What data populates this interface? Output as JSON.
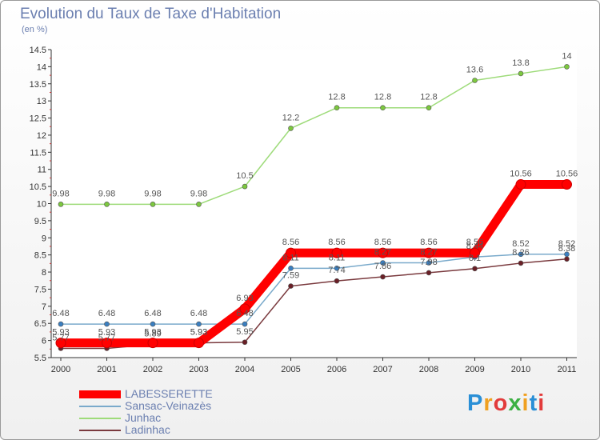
{
  "title": "Evolution du Taux de Taxe d'Habitation",
  "unit": "(en %)",
  "logo": "Proxiti",
  "chart_data": {
    "type": "line",
    "title": "Evolution du Taux de Taxe d'Habitation",
    "ylabel": "(en %)",
    "x": [
      "2000",
      "2001",
      "2002",
      "2003",
      "2004",
      "2005",
      "2006",
      "2007",
      "2008",
      "2009",
      "2010",
      "2011"
    ],
    "ylim": [
      5.5,
      14.5
    ],
    "yticks": [
      "5.5",
      "6",
      "6.5",
      "7",
      "7.5",
      "8",
      "8.5",
      "9",
      "9.5",
      "10",
      "10.5",
      "11",
      "11.5",
      "12",
      "12.5",
      "13",
      "13.5",
      "14",
      "14.5"
    ],
    "grid": false,
    "legend_position": "bottom-left",
    "series": [
      {
        "name": "LABESSERETTE",
        "color": "#ff0000",
        "values": [
          5.93,
          5.93,
          5.93,
          5.93,
          6.93,
          8.56,
          8.56,
          8.56,
          8.56,
          8.56,
          10.56,
          10.56
        ],
        "labels": [
          "5.93",
          "5.93",
          "5.93",
          "5.93",
          "6.93",
          "8.56",
          "8.56",
          "8.56",
          "8.56",
          "8.56",
          "10.56",
          "10.56"
        ]
      },
      {
        "name": "Sansac-Veinazès",
        "color": "#7aaacb",
        "values": [
          6.48,
          6.48,
          6.48,
          6.48,
          6.48,
          8.11,
          8.11,
          8.27,
          8.27,
          8.44,
          8.52,
          8.52
        ],
        "labels": [
          "6.48",
          "6.48",
          "6.48",
          "6.48",
          "6.48",
          "8.11",
          "8.11",
          "8.27",
          "8.27",
          "8.44",
          "8.52",
          "8.52"
        ]
      },
      {
        "name": "Junhac",
        "color": "#9edb7a",
        "values": [
          9.98,
          9.98,
          9.98,
          9.98,
          10.5,
          12.2,
          12.8,
          12.8,
          12.8,
          13.6,
          13.8,
          14
        ],
        "labels": [
          "9.98",
          "9.98",
          "9.98",
          "9.98",
          "10.5",
          "12.2",
          "12.8",
          "12.8",
          "12.8",
          "13.6",
          "13.8",
          "14"
        ]
      },
      {
        "name": "Ladinhac",
        "color": "#7a3a3e",
        "values": [
          5.77,
          5.77,
          5.89,
          5.93,
          5.95,
          7.59,
          7.74,
          7.86,
          7.98,
          8.1,
          8.26,
          8.38
        ],
        "labels": [
          "5.77",
          "5.77",
          "5.89",
          "5.93",
          "5.95",
          "7.59",
          "7.74",
          "7.86",
          "7.98",
          "8.1",
          "8.26",
          "8.38"
        ]
      }
    ]
  }
}
